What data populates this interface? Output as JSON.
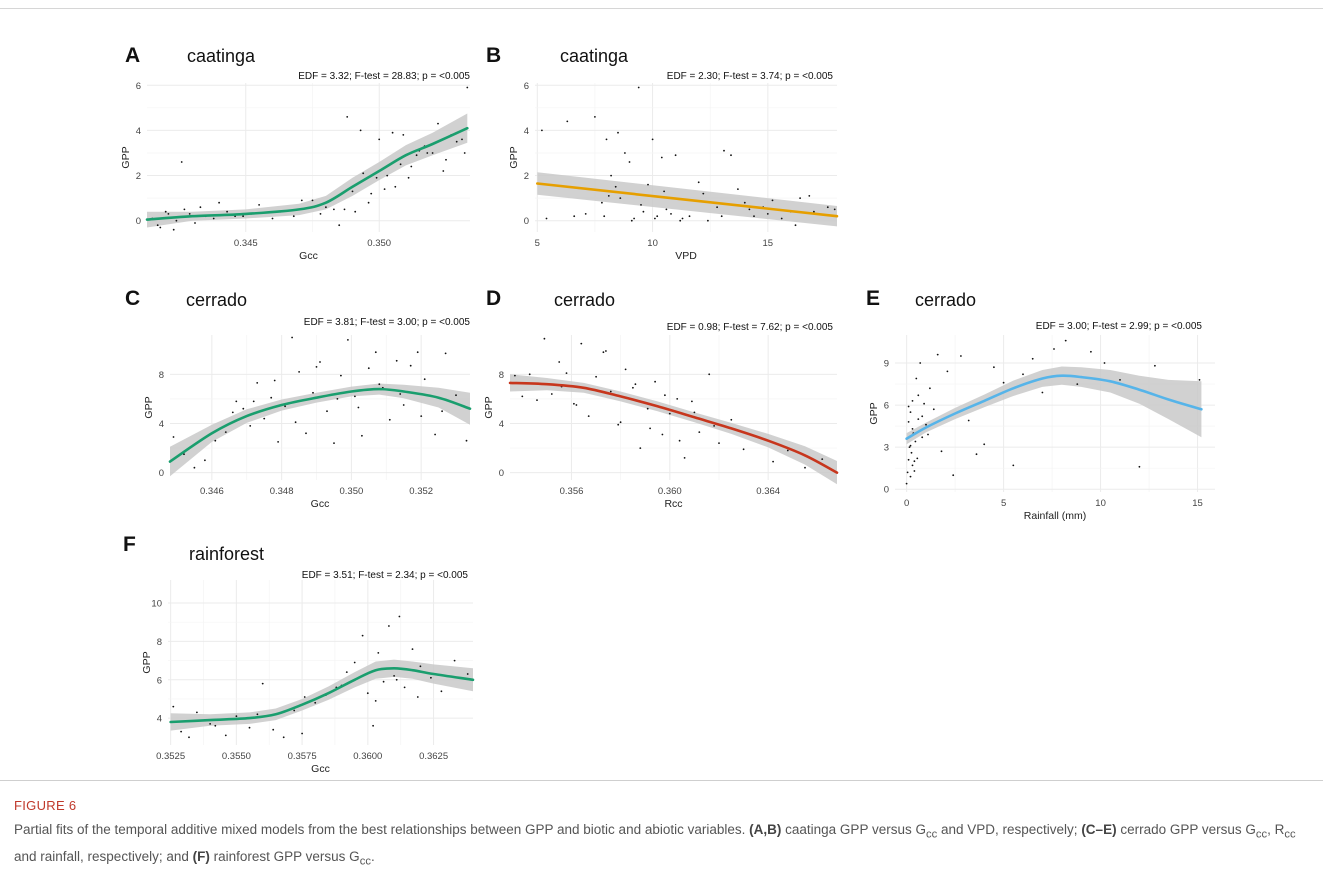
{
  "figure_label": "FIGURE 6",
  "caption": {
    "t1": "Partial fits of the temporal additive mixed models from the best relationships between GPP and biotic and abiotic variables. ",
    "b1": "(A,B)",
    "t2": " caatinga GPP versus ",
    "t3": " and VPD, respectively; ",
    "b2": "(C–E)",
    "t4": " cerrado GPP versus ",
    "t5": ", ",
    "t6": " and rainfall, respectively; and ",
    "b3": "(F)",
    "t7": " rainforest GPP versus ",
    "t8": ".",
    "g_main": "G",
    "r_main": "R",
    "cc_sub": "cc"
  },
  "chart_data": [
    {
      "panel": "A",
      "site": "caatinga",
      "type": "line",
      "stat": "EDF = 3.32; F-test = 28.83; p = <0.005",
      "xlabel": "Gcc",
      "ylabel": "GPP",
      "xlim": [
        0.3413,
        0.3534
      ],
      "ylim": [
        -0.5,
        6.1
      ],
      "xticks": [
        0.345,
        0.35
      ],
      "xticklabels": [
        "0.345",
        "0.350"
      ],
      "yticks": [
        0,
        2,
        4,
        6
      ],
      "yticklabels": [
        "0",
        "2",
        "4",
        "6"
      ],
      "color": "#1a9e6e",
      "grid": true,
      "fit": {
        "x": [
          0.3413,
          0.343,
          0.345,
          0.347,
          0.348,
          0.349,
          0.35,
          0.351,
          0.352,
          0.3533
        ],
        "y": [
          0.05,
          0.2,
          0.3,
          0.5,
          0.8,
          1.5,
          2.2,
          2.9,
          3.4,
          4.1
        ]
      },
      "band": [
        0.35,
        0.2,
        0.2,
        0.25,
        0.3,
        0.4,
        0.4,
        0.45,
        0.5,
        0.65
      ],
      "points": {
        "x": [
          0.3415,
          0.3418,
          0.3421,
          0.3424,
          0.3427,
          0.3431,
          0.3435,
          0.344,
          0.3446,
          0.3452,
          0.346,
          0.3468,
          0.3475,
          0.348,
          0.3485,
          0.3488,
          0.3491,
          0.3494,
          0.3497,
          0.35,
          0.3503,
          0.3506,
          0.3509,
          0.3512,
          0.3515,
          0.3518,
          0.3522,
          0.3525,
          0.3529,
          0.3533,
          0.3417,
          0.342,
          0.3423,
          0.3426,
          0.3429,
          0.3433,
          0.3438,
          0.3443,
          0.3449,
          0.3455,
          0.3463,
          0.3471,
          0.3478,
          0.3483,
          0.3487,
          0.349,
          0.3493,
          0.3496,
          0.3499,
          0.3502,
          0.3505,
          0.3508,
          0.3511,
          0.3514,
          0.3517,
          0.352,
          0.3524,
          0.3527,
          0.3531,
          0.3532
        ],
        "y": [
          0.1,
          -0.3,
          0.3,
          0.0,
          0.5,
          -0.1,
          0.2,
          0.8,
          0.2,
          0.3,
          0.1,
          0.2,
          0.9,
          0.6,
          -0.2,
          4.6,
          0.4,
          2.1,
          1.2,
          3.6,
          2.0,
          1.5,
          3.8,
          2.4,
          3.1,
          3.0,
          4.3,
          2.7,
          3.5,
          5.9,
          -0.2,
          0.4,
          -0.4,
          2.6,
          0.3,
          0.6,
          0.1,
          0.4,
          0.2,
          0.7,
          0.4,
          0.9,
          0.3,
          0.5,
          0.5,
          1.3,
          4.0,
          0.8,
          1.9,
          1.4,
          3.9,
          2.5,
          1.9,
          2.9,
          3.3,
          3.0,
          2.2,
          3.8,
          3.6,
          3.0
        ]
      }
    },
    {
      "panel": "B",
      "site": "caatinga",
      "type": "line",
      "stat": "EDF = 2.30; F-test = 3.74; p = <0.005",
      "xlabel": "VPD",
      "ylabel": "GPP",
      "xlim": [
        4.9,
        18.0
      ],
      "ylim": [
        -0.5,
        6.1
      ],
      "xticks": [
        5,
        10,
        15
      ],
      "xticklabels": [
        "5",
        "10",
        "15"
      ],
      "yticks": [
        0,
        2,
        4,
        6
      ],
      "yticklabels": [
        "0",
        "2",
        "4",
        "6"
      ],
      "color": "#e69f00",
      "grid": true,
      "fit": {
        "x": [
          5.0,
          18.0
        ],
        "y": [
          1.65,
          0.2
        ]
      },
      "band": [
        0.5,
        0.45
      ],
      "points": {
        "x": [
          5.2,
          5.4,
          6.3,
          6.6,
          7.1,
          7.5,
          7.8,
          8.0,
          8.2,
          8.4,
          8.6,
          8.8,
          9.0,
          9.2,
          9.4,
          9.6,
          9.8,
          10.0,
          10.2,
          10.4,
          10.6,
          10.8,
          11.0,
          11.3,
          11.6,
          12.0,
          12.4,
          12.8,
          13.1,
          13.4,
          13.7,
          14.0,
          14.4,
          14.8,
          15.2,
          15.6,
          16.0,
          16.4,
          16.8,
          17.2,
          17.6,
          17.9,
          7.9,
          8.1,
          8.5,
          9.1,
          9.5,
          10.1,
          10.5,
          11.2,
          12.2,
          13.0,
          14.2,
          15.0,
          16.2,
          17.0
        ],
        "y": [
          4.0,
          0.1,
          4.4,
          0.2,
          0.3,
          4.6,
          0.8,
          3.6,
          2.0,
          1.5,
          1.0,
          3.0,
          2.6,
          0.1,
          5.9,
          0.4,
          1.6,
          3.6,
          0.2,
          2.8,
          0.5,
          0.3,
          2.9,
          0.1,
          0.2,
          1.7,
          0.0,
          0.6,
          3.1,
          2.9,
          1.4,
          0.8,
          0.2,
          0.6,
          0.9,
          0.1,
          0.4,
          1.0,
          1.1,
          0.3,
          0.6,
          0.5,
          0.2,
          1.1,
          3.9,
          0.0,
          0.7,
          0.1,
          1.3,
          0.0,
          1.2,
          0.2,
          0.5,
          0.3,
          -0.2,
          0.4
        ]
      }
    },
    {
      "panel": "C",
      "site": "cerrado",
      "type": "line",
      "stat": "EDF = 3.81; F-test = 3.00; p = <0.005",
      "xlabel": "Gcc",
      "ylabel": "GPP",
      "xlim": [
        0.3448,
        0.3534
      ],
      "ylim": [
        -0.6,
        11.2
      ],
      "xticks": [
        0.346,
        0.348,
        0.35,
        0.352
      ],
      "xticklabels": [
        "0.346",
        "0.348",
        "0.350",
        "0.352"
      ],
      "yticks": [
        0,
        4,
        8
      ],
      "yticklabels": [
        "0",
        "4",
        "8"
      ],
      "color": "#1a9e6e",
      "grid": true,
      "fit": {
        "x": [
          0.3448,
          0.346,
          0.347,
          0.348,
          0.349,
          0.35,
          0.3508,
          0.3515,
          0.3525,
          0.3534
        ],
        "y": [
          0.9,
          3.2,
          4.6,
          5.5,
          6.1,
          6.6,
          6.8,
          6.6,
          6.1,
          5.2
        ]
      },
      "band": [
        1.2,
        0.7,
        0.55,
        0.45,
        0.4,
        0.4,
        0.45,
        0.55,
        0.8,
        1.3
      ],
      "points": {
        "x": [
          0.3449,
          0.3452,
          0.3455,
          0.3458,
          0.3461,
          0.3464,
          0.3467,
          0.3469,
          0.3471,
          0.3473,
          0.3475,
          0.3477,
          0.3479,
          0.3481,
          0.3483,
          0.3485,
          0.3487,
          0.3489,
          0.3491,
          0.3493,
          0.3495,
          0.3497,
          0.3499,
          0.3501,
          0.3503,
          0.3505,
          0.3507,
          0.3509,
          0.3511,
          0.3513,
          0.3515,
          0.3517,
          0.3519,
          0.3521,
          0.3524,
          0.3527,
          0.353,
          0.3533,
          0.3466,
          0.3472,
          0.3478,
          0.3484,
          0.349,
          0.3496,
          0.3502,
          0.3508,
          0.3514,
          0.352,
          0.3526
        ],
        "y": [
          2.9,
          1.5,
          0.4,
          1.0,
          2.6,
          3.3,
          5.8,
          5.2,
          3.8,
          7.3,
          4.4,
          6.1,
          2.5,
          5.4,
          11.0,
          8.2,
          3.2,
          6.5,
          9.0,
          5.0,
          2.4,
          7.9,
          10.8,
          6.2,
          3.0,
          8.5,
          9.8,
          6.9,
          4.3,
          9.1,
          5.5,
          8.7,
          9.8,
          7.6,
          3.1,
          9.7,
          6.3,
          2.6,
          4.9,
          5.8,
          7.5,
          4.1,
          8.6,
          6.0,
          5.3,
          7.2,
          6.4,
          4.6,
          5.0
        ]
      }
    },
    {
      "panel": "D",
      "site": "cerrado",
      "type": "line",
      "stat": "EDF = 0.98; F-test = 7.62; p = <0.005",
      "xlabel": "Rcc",
      "ylabel": "GPP",
      "xlim": [
        0.3535,
        0.3668
      ],
      "ylim": [
        -0.6,
        11.2
      ],
      "xticks": [
        0.356,
        0.36,
        0.364
      ],
      "xticklabels": [
        "0.356",
        "0.360",
        "0.364"
      ],
      "yticks": [
        0,
        4,
        8
      ],
      "yticklabels": [
        "0",
        "4",
        "8"
      ],
      "color": "#c7361d",
      "grid": true,
      "fit": {
        "x": [
          0.3535,
          0.355,
          0.3565,
          0.358,
          0.3595,
          0.361,
          0.3625,
          0.364,
          0.3655,
          0.3668
        ],
        "y": [
          7.3,
          7.2,
          6.9,
          6.2,
          5.4,
          4.5,
          3.6,
          2.6,
          1.4,
          0.0
        ]
      },
      "band": [
        0.7,
        0.5,
        0.4,
        0.4,
        0.4,
        0.4,
        0.45,
        0.55,
        0.75,
        0.95
      ],
      "points": {
        "x": [
          0.3537,
          0.354,
          0.3543,
          0.3546,
          0.3549,
          0.3552,
          0.3555,
          0.3558,
          0.3561,
          0.3564,
          0.3567,
          0.357,
          0.3573,
          0.3576,
          0.3579,
          0.3582,
          0.3585,
          0.3588,
          0.3591,
          0.3594,
          0.3597,
          0.36,
          0.3603,
          0.3606,
          0.3609,
          0.3612,
          0.3616,
          0.362,
          0.3625,
          0.363,
          0.3636,
          0.3642,
          0.3648,
          0.3655,
          0.3662,
          0.3666,
          0.3556,
          0.3562,
          0.3568,
          0.3574,
          0.358,
          0.3586,
          0.3592,
          0.3598,
          0.3604,
          0.361,
          0.3618
        ],
        "y": [
          7.9,
          6.2,
          8.0,
          5.9,
          10.9,
          6.4,
          9.0,
          8.1,
          5.6,
          10.5,
          4.6,
          7.8,
          9.8,
          6.6,
          3.9,
          8.4,
          6.9,
          2.0,
          5.2,
          7.4,
          3.1,
          4.8,
          6.0,
          1.2,
          5.8,
          3.3,
          8.0,
          2.4,
          4.3,
          1.9,
          2.9,
          0.9,
          1.8,
          0.4,
          1.1,
          0.2,
          7.0,
          5.5,
          6.8,
          9.9,
          4.1,
          7.2,
          3.6,
          6.3,
          2.6,
          4.9,
          3.8
        ]
      }
    },
    {
      "panel": "E",
      "site": "cerrado",
      "type": "line",
      "stat": "EDF = 3.00; F-test = 2.99; p = <0.005",
      "xlabel": "Rainfall (mm)",
      "ylabel": "GPP",
      "xlim": [
        -0.6,
        15.9
      ],
      "ylim": [
        -0.2,
        11.0
      ],
      "xticks": [
        0,
        5,
        10,
        15
      ],
      "xticklabels": [
        "0",
        "5",
        "10",
        "15"
      ],
      "yticks": [
        0,
        3,
        6,
        9
      ],
      "yticklabels": [
        "0",
        "3",
        "6",
        "9"
      ],
      "color": "#56b4e9",
      "grid": true,
      "fit": {
        "x": [
          0.0,
          1.0,
          2.5,
          4.0,
          5.5,
          7.0,
          8.0,
          9.0,
          10.5,
          12.0,
          13.5,
          15.2
        ],
        "y": [
          3.6,
          4.4,
          5.4,
          6.3,
          7.2,
          7.9,
          8.1,
          8.0,
          7.7,
          7.1,
          6.4,
          5.7
        ]
      },
      "band": [
        0.4,
        0.35,
        0.4,
        0.45,
        0.55,
        0.6,
        0.65,
        0.7,
        0.8,
        1.0,
        1.4,
        2.0
      ],
      "points": {
        "x": [
          0.0,
          0.05,
          0.1,
          0.1,
          0.15,
          0.2,
          0.2,
          0.25,
          0.3,
          0.3,
          0.35,
          0.4,
          0.45,
          0.5,
          0.55,
          0.6,
          0.7,
          0.8,
          0.9,
          1.0,
          1.2,
          1.4,
          1.6,
          1.8,
          2.1,
          2.4,
          2.8,
          3.2,
          3.6,
          4.0,
          4.5,
          5.0,
          5.5,
          6.0,
          6.5,
          7.0,
          7.6,
          8.2,
          8.8,
          9.5,
          10.2,
          11.0,
          12.0,
          12.8,
          15.1,
          0.1,
          0.2,
          0.3,
          0.4,
          0.6,
          0.8,
          1.1
        ],
        "y": [
          0.4,
          1.2,
          2.1,
          4.8,
          3.0,
          0.9,
          5.5,
          2.6,
          1.7,
          6.3,
          4.0,
          1.3,
          3.4,
          7.9,
          2.2,
          5.0,
          9.0,
          3.7,
          6.1,
          4.6,
          7.2,
          5.7,
          9.6,
          2.7,
          8.4,
          1.0,
          9.5,
          4.9,
          2.5,
          3.2,
          8.7,
          7.6,
          1.7,
          8.2,
          9.3,
          6.9,
          10.0,
          10.6,
          7.5,
          9.8,
          9.0,
          7.8,
          1.6,
          8.8,
          7.8,
          5.9,
          3.1,
          4.3,
          2.0,
          6.7,
          5.2,
          3.9
        ]
      }
    },
    {
      "panel": "F",
      "site": "rainforest",
      "type": "line",
      "stat": "EDF = 3.51; F-test = 2.34; p = <0.005",
      "xlabel": "Gcc",
      "ylabel": "GPP",
      "xlim": [
        0.3524,
        0.364
      ],
      "ylim": [
        2.6,
        11.2
      ],
      "xticks": [
        0.3525,
        0.355,
        0.3575,
        0.36,
        0.3625
      ],
      "xticklabels": [
        "0.3525",
        "0.3550",
        "0.3575",
        "0.3600",
        "0.3625"
      ],
      "yticks": [
        4,
        6,
        8,
        10
      ],
      "yticklabels": [
        "4",
        "6",
        "8",
        "10"
      ],
      "color": "#1a9e6e",
      "grid": true,
      "fit": {
        "x": [
          0.3525,
          0.354,
          0.3555,
          0.3565,
          0.3575,
          0.3585,
          0.3595,
          0.3603,
          0.361,
          0.3617,
          0.3625,
          0.364
        ],
        "y": [
          3.8,
          3.9,
          4.0,
          4.2,
          4.7,
          5.3,
          6.0,
          6.5,
          6.6,
          6.5,
          6.3,
          6.0
        ]
      },
      "band": [
        0.45,
        0.3,
        0.3,
        0.3,
        0.3,
        0.35,
        0.4,
        0.45,
        0.45,
        0.45,
        0.5,
        0.6
      ],
      "points": {
        "x": [
          0.3526,
          0.3529,
          0.3532,
          0.3535,
          0.3538,
          0.3542,
          0.3546,
          0.355,
          0.3555,
          0.356,
          0.3564,
          0.3568,
          0.3572,
          0.3576,
          0.358,
          0.3584,
          0.3588,
          0.3592,
          0.3595,
          0.3598,
          0.36,
          0.3602,
          0.3604,
          0.3606,
          0.3608,
          0.361,
          0.3612,
          0.3614,
          0.3617,
          0.362,
          0.3624,
          0.3628,
          0.3633,
          0.3638,
          0.354,
          0.3558,
          0.3575,
          0.359,
          0.3603,
          0.3611,
          0.3619
        ],
        "y": [
          4.6,
          3.3,
          3.0,
          4.3,
          3.9,
          3.6,
          3.1,
          4.1,
          3.5,
          5.8,
          3.4,
          3.0,
          4.4,
          5.1,
          4.8,
          5.2,
          5.6,
          6.4,
          6.9,
          8.3,
          5.3,
          3.6,
          7.4,
          5.9,
          8.8,
          6.2,
          9.3,
          5.6,
          7.6,
          6.7,
          6.1,
          5.4,
          7.0,
          6.3,
          3.7,
          4.2,
          3.2,
          5.7,
          4.9,
          6.0,
          5.1
        ]
      }
    }
  ]
}
